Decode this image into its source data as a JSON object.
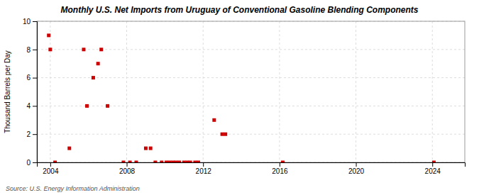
{
  "chart_data": {
    "type": "scatter",
    "title": "Monthly U.S. Net Imports from Uruguay of Conventional Gasoline Blending Components",
    "ylabel": "Thousand Barrels per Day",
    "annotations": [
      "Source: U.S. Energy Information Administration"
    ],
    "color": "#cc0000",
    "marker": "square",
    "grid": true,
    "xlim": [
      2003.3,
      2025.7
    ],
    "xticks": [
      2004,
      2008,
      2012,
      2016,
      2020,
      2024
    ],
    "ylim": [
      0,
      10
    ],
    "yticks": [
      0,
      2,
      4,
      6,
      8,
      10
    ],
    "x": [
      2003.92,
      2004.0,
      2004.25,
      2005.0,
      2005.75,
      2005.92,
      2006.25,
      2006.5,
      2006.67,
      2007.0,
      2007.83,
      2008.17,
      2008.5,
      2009.0,
      2009.25,
      2009.5,
      2009.83,
      2010.08,
      2010.25,
      2010.42,
      2010.58,
      2010.75,
      2011.0,
      2011.17,
      2011.33,
      2011.58,
      2011.75,
      2012.58,
      2013.0,
      2013.17,
      2016.17,
      2024.08
    ],
    "values": [
      9,
      8,
      0,
      1,
      8,
      4,
      6,
      7,
      8,
      4,
      0,
      0,
      0,
      1,
      1,
      0,
      0,
      0,
      0,
      0,
      0,
      0,
      0,
      0,
      0,
      0,
      0,
      3,
      2,
      2,
      0,
      0
    ]
  }
}
